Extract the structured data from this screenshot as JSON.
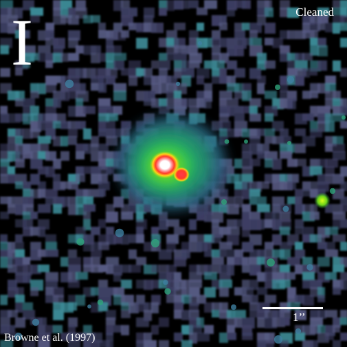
{
  "image": {
    "band_label": "I",
    "processing_label": "Cleaned",
    "credit": "Browne et al. (1997)",
    "scale_bar_label": "1’’"
  },
  "colors": {
    "background": "#000000",
    "noise": "#5a5f86",
    "halo": "#2fbf6a",
    "core_ring": "#ff4a3a",
    "core_center": "#ffffff"
  }
}
